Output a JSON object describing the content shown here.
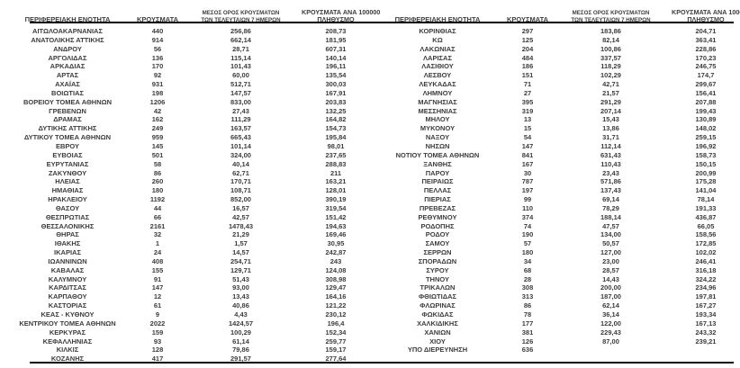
{
  "colors": {
    "text": "#3d3d3d",
    "rule": "#000000"
  },
  "tables": [
    {
      "headers": {
        "region": "ΠΕΡΙΦΕΡΕΙΑΚΗ ΕΝΟΤΗΤΑ",
        "cases": "ΚΡΟΥΣΜΑΤΑ",
        "avg7_line1": "ΜΕΣΟΣ ΟΡΟΣ ΚΡΟΥΣΜΑΤΩΝ",
        "avg7_line2": "ΤΩΝ ΤΕΛΕΥΤΑΙΩΝ 7 ΗΜΕΡΩΝ",
        "per100k_line1": "ΚΡΟΥΣΜΑΤΑ ΑΝΑ 100000",
        "per100k_line2": "ΠΛΗΘΥΣΜΟ"
      },
      "rows": [
        [
          "ΑΙΤΩΛΟΑΚΑΡΝΑΝΙΑΣ",
          "440",
          "256,86",
          "208,73"
        ],
        [
          "ΑΝΑΤΟΛΙΚΗΣ ΑΤΤΙΚΗΣ",
          "914",
          "662,14",
          "181,95"
        ],
        [
          "ΑΝΔΡΟΥ",
          "56",
          "28,71",
          "607,31"
        ],
        [
          "ΑΡΓΟΛΙΔΑΣ",
          "136",
          "115,14",
          "140,14"
        ],
        [
          "ΑΡΚΑΔΙΑΣ",
          "170",
          "101,43",
          "196,11"
        ],
        [
          "ΑΡΤΑΣ",
          "92",
          "60,00",
          "135,54"
        ],
        [
          "ΑΧΑΪΑΣ",
          "931",
          "512,71",
          "300,03"
        ],
        [
          "ΒΟΙΩΤΙΑΣ",
          "198",
          "147,57",
          "167,91"
        ],
        [
          "ΒΟΡΕΙΟΥ ΤΟΜΕΑ ΑΘΗΝΩΝ",
          "1206",
          "833,00",
          "203,83"
        ],
        [
          "ΓΡΕΒΕΝΩΝ",
          "42",
          "27,43",
          "132,25"
        ],
        [
          "ΔΡΑΜΑΣ",
          "162",
          "111,29",
          "164,82"
        ],
        [
          "ΔΥΤΙΚΗΣ ΑΤΤΙΚΗΣ",
          "249",
          "163,57",
          "154,73"
        ],
        [
          "ΔΥΤΙΚΟΥ ΤΟΜΕΑ ΑΘΗΝΩΝ",
          "959",
          "665,43",
          "195,84"
        ],
        [
          "ΕΒΡΟΥ",
          "145",
          "101,14",
          "98,01"
        ],
        [
          "ΕΥΒΟΙΑΣ",
          "501",
          "324,00",
          "237,65"
        ],
        [
          "ΕΥΡΥΤΑΝΙΑΣ",
          "58",
          "40,14",
          "288,83"
        ],
        [
          "ΖΑΚΥΝΘΟΥ",
          "86",
          "62,71",
          "211"
        ],
        [
          "ΗΛΕΙΑΣ",
          "260",
          "170,71",
          "163,21"
        ],
        [
          "ΗΜΑΘΙΑΣ",
          "180",
          "108,71",
          "128,01"
        ],
        [
          "ΗΡΑΚΛΕΙΟΥ",
          "1192",
          "852,00",
          "390,19"
        ],
        [
          "ΘΑΣΟΥ",
          "44",
          "16,57",
          "319,54"
        ],
        [
          "ΘΕΣΠΡΩΤΙΑΣ",
          "66",
          "42,57",
          "151,42"
        ],
        [
          "ΘΕΣΣΑΛΟΝΙΚΗΣ",
          "2161",
          "1478,43",
          "194,63"
        ],
        [
          "ΘΗΡΑΣ",
          "32",
          "21,29",
          "169,46"
        ],
        [
          "ΙΘΑΚΗΣ",
          "1",
          "1,57",
          "30,95"
        ],
        [
          "ΙΚΑΡΙΑΣ",
          "24",
          "14,57",
          "242,87"
        ],
        [
          "ΙΩΑΝΝΙΝΩΝ",
          "408",
          "254,71",
          "243"
        ],
        [
          "ΚΑΒΑΛΑΣ",
          "155",
          "129,71",
          "124,08"
        ],
        [
          "ΚΑΛΥΜΝΟΥ",
          "91",
          "51,43",
          "308,98"
        ],
        [
          "ΚΑΡΔΙΤΣΑΣ",
          "147",
          "93,00",
          "129,47"
        ],
        [
          "ΚΑΡΠΑΘΟΥ",
          "12",
          "13,43",
          "164,16"
        ],
        [
          "ΚΑΣΤΟΡΙΑΣ",
          "61",
          "40,86",
          "121,22"
        ],
        [
          "ΚΕΑΣ - ΚΥΘΝΟΥ",
          "9",
          "4,43",
          "230,12"
        ],
        [
          "ΚΕΝΤΡΙΚΟΥ ΤΟΜΕΑ ΑΘΗΝΩΝ",
          "2022",
          "1424,57",
          "196,4"
        ],
        [
          "ΚΕΡΚΥΡΑΣ",
          "159",
          "100,29",
          "152,34"
        ],
        [
          "ΚΕΦΑΛΛΗΝΙΑΣ",
          "93",
          "61,14",
          "259,77"
        ],
        [
          "ΚΙΛΚΙΣ",
          "128",
          "79,86",
          "159,17"
        ],
        [
          "ΚΟΖΑΝΗΣ",
          "417",
          "291,57",
          "277,64"
        ]
      ]
    },
    {
      "headers": {
        "region": "ΠΕΡΙΦΕΡΕΙΑΚΗ ΕΝΟΤΗΤΑ",
        "cases": "ΚΡΟΥΣΜΑΤΑ",
        "avg7_line1": "ΜΕΣΟΣ ΟΡΟΣ ΚΡΟΥΣΜΑΤΩΝ",
        "avg7_line2": "ΤΩΝ ΤΕΛΕΥΤΑΙΩΝ 7 ΗΜΕΡΩΝ",
        "per100k_line1": "ΚΡΟΥΣΜΑΤΑ ΑΝΑ 100000",
        "per100k_line2": "ΠΛΗΘΥΣΜΟ"
      },
      "rows": [
        [
          "ΚΟΡΙΝΘΙΑΣ",
          "297",
          "183,86",
          "204,71"
        ],
        [
          "ΚΩ",
          "125",
          "82,14",
          "363,41"
        ],
        [
          "ΛΑΚΩΝΙΑΣ",
          "204",
          "100,86",
          "228,86"
        ],
        [
          "ΛΑΡΙΣΑΣ",
          "484",
          "337,57",
          "170,23"
        ],
        [
          "ΛΑΣΙΘΙΟΥ",
          "186",
          "118,29",
          "246,75"
        ],
        [
          "ΛΕΣΒΟΥ",
          "151",
          "102,29",
          "174,7"
        ],
        [
          "ΛΕΥΚΑΔΑΣ",
          "71",
          "42,71",
          "299,67"
        ],
        [
          "ΛΗΜΝΟΥ",
          "27",
          "21,57",
          "156,41"
        ],
        [
          "ΜΑΓΝΗΣΙΑΣ",
          "395",
          "291,29",
          "207,88"
        ],
        [
          "ΜΕΣΣΗΝΙΑΣ",
          "319",
          "207,14",
          "199,43"
        ],
        [
          "ΜΗΛΟΥ",
          "13",
          "15,43",
          "130,89"
        ],
        [
          "ΜΥΚΟΝΟΥ",
          "15",
          "13,86",
          "148,02"
        ],
        [
          "ΝΑΞΟΥ",
          "54",
          "31,71",
          "259,15"
        ],
        [
          "ΝΗΣΩΝ",
          "147",
          "112,14",
          "196,92"
        ],
        [
          "ΝΟΤΙΟΥ ΤΟΜΕΑ ΑΘΗΝΩΝ",
          "841",
          "631,43",
          "158,73"
        ],
        [
          "ΞΑΝΘΗΣ",
          "167",
          "110,43",
          "150,15"
        ],
        [
          "ΠΑΡΟΥ",
          "30",
          "23,43",
          "200,99"
        ],
        [
          "ΠΕΙΡΑΙΩΣ",
          "787",
          "571,86",
          "175,28"
        ],
        [
          "ΠΕΛΛΑΣ",
          "197",
          "137,43",
          "141,04"
        ],
        [
          "ΠΙΕΡΙΑΣ",
          "99",
          "69,14",
          "78,14"
        ],
        [
          "ΠΡΕΒΕΖΑΣ",
          "110",
          "78,29",
          "191,33"
        ],
        [
          "ΡΕΘΥΜΝΟΥ",
          "374",
          "188,14",
          "436,87"
        ],
        [
          "ΡΟΔΟΠΗΣ",
          "74",
          "47,57",
          "66,05"
        ],
        [
          "ΡΟΔΟΥ",
          "190",
          "134,00",
          "158,56"
        ],
        [
          "ΣΑΜΟΥ",
          "57",
          "50,57",
          "172,85"
        ],
        [
          "ΣΕΡΡΩΝ",
          "180",
          "127,00",
          "102,02"
        ],
        [
          "ΣΠΟΡΑΔΩΝ",
          "34",
          "23,00",
          "246,41"
        ],
        [
          "ΣΥΡΟΥ",
          "68",
          "28,57",
          "316,18"
        ],
        [
          "ΤΗΝΟΥ",
          "28",
          "14,43",
          "324,22"
        ],
        [
          "ΤΡΙΚΑΛΩΝ",
          "308",
          "200,00",
          "234,96"
        ],
        [
          "ΦΘΙΩΤΙΔΑΣ",
          "313",
          "187,00",
          "197,81"
        ],
        [
          "ΦΛΩΡΙΝΑΣ",
          "86",
          "62,14",
          "167,27"
        ],
        [
          "ΦΩΚΙΔΑΣ",
          "78",
          "36,14",
          "193,34"
        ],
        [
          "ΧΑΛΚΙΔΙΚΗΣ",
          "177",
          "122,00",
          "167,13"
        ],
        [
          "ΧΑΝΙΩΝ",
          "381",
          "229,43",
          "243,32"
        ],
        [
          "ΧΙΟΥ",
          "126",
          "87,00",
          "239,21"
        ],
        [
          "ΥΠΟ ΔΙΕΡΕΥΝΗΣΗ",
          "636",
          "",
          ""
        ]
      ]
    }
  ]
}
